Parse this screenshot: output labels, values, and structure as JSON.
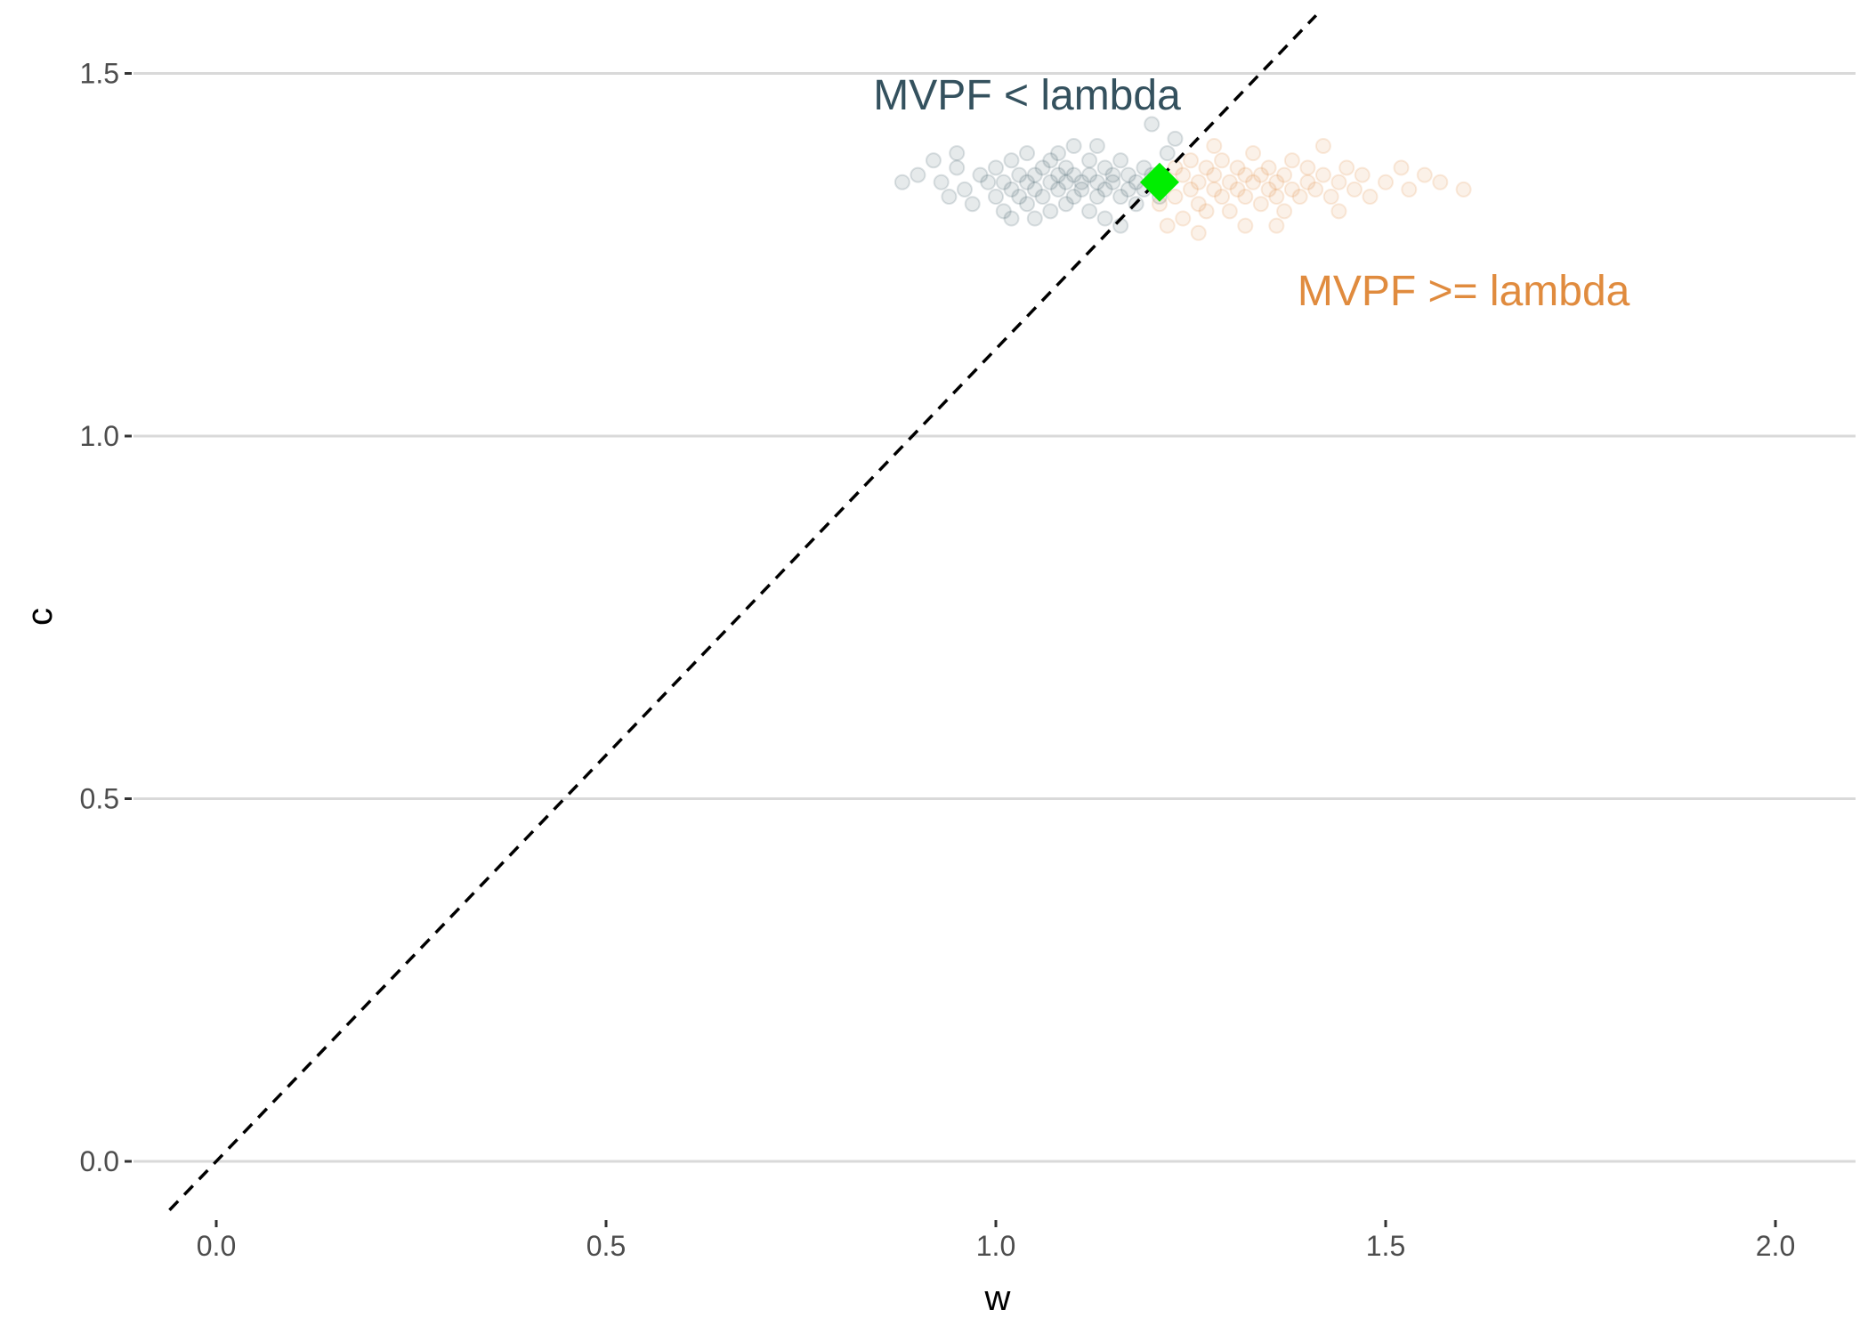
{
  "chart_data": {
    "type": "scatter",
    "title": "",
    "xlabel": "w",
    "ylabel": "c",
    "xlim": [
      -0.06,
      2.1
    ],
    "ylim": [
      -0.07,
      1.58
    ],
    "x_ticks": [
      0.0,
      0.5,
      1.0,
      1.5,
      2.0
    ],
    "x_tick_labels": [
      "0.0",
      "0.5",
      "1.0",
      "1.5",
      "2.0"
    ],
    "y_ticks": [
      0.0,
      0.5,
      1.0,
      1.5
    ],
    "y_tick_labels": [
      "0.0",
      "0.5",
      "1.0",
      "1.5"
    ],
    "grid": "horizontal",
    "series": [
      {
        "color": "#34515e",
        "opacity": 0.12,
        "points": [
          [
            0.88,
            1.35
          ],
          [
            0.9,
            1.36
          ],
          [
            0.92,
            1.38
          ],
          [
            0.93,
            1.35
          ],
          [
            0.94,
            1.33
          ],
          [
            0.95,
            1.37
          ],
          [
            0.96,
            1.34
          ],
          [
            0.97,
            1.32
          ],
          [
            0.98,
            1.36
          ],
          [
            0.99,
            1.35
          ],
          [
            1.0,
            1.33
          ],
          [
            1.0,
            1.37
          ],
          [
            1.01,
            1.31
          ],
          [
            1.01,
            1.35
          ],
          [
            1.02,
            1.34
          ],
          [
            1.02,
            1.38
          ],
          [
            1.03,
            1.33
          ],
          [
            1.03,
            1.36
          ],
          [
            1.04,
            1.32
          ],
          [
            1.04,
            1.35
          ],
          [
            1.04,
            1.39
          ],
          [
            1.05,
            1.34
          ],
          [
            1.05,
            1.36
          ],
          [
            1.06,
            1.33
          ],
          [
            1.06,
            1.37
          ],
          [
            1.07,
            1.31
          ],
          [
            1.07,
            1.35
          ],
          [
            1.07,
            1.38
          ],
          [
            1.08,
            1.34
          ],
          [
            1.08,
            1.36
          ],
          [
            1.09,
            1.32
          ],
          [
            1.09,
            1.35
          ],
          [
            1.09,
            1.37
          ],
          [
            1.1,
            1.33
          ],
          [
            1.1,
            1.36
          ],
          [
            1.1,
            1.4
          ],
          [
            1.11,
            1.34
          ],
          [
            1.11,
            1.35
          ],
          [
            1.12,
            1.31
          ],
          [
            1.12,
            1.36
          ],
          [
            1.12,
            1.38
          ],
          [
            1.13,
            1.33
          ],
          [
            1.13,
            1.35
          ],
          [
            1.14,
            1.34
          ],
          [
            1.14,
            1.37
          ],
          [
            1.14,
            1.3
          ],
          [
            1.15,
            1.35
          ],
          [
            1.15,
            1.36
          ],
          [
            1.16,
            1.33
          ],
          [
            1.16,
            1.38
          ],
          [
            1.17,
            1.34
          ],
          [
            1.17,
            1.36
          ],
          [
            1.18,
            1.32
          ],
          [
            1.18,
            1.35
          ],
          [
            1.19,
            1.37
          ],
          [
            1.19,
            1.34
          ],
          [
            1.2,
            1.36
          ],
          [
            1.2,
            1.43
          ],
          [
            1.21,
            1.33
          ],
          [
            1.22,
            1.39
          ],
          [
            1.23,
            1.41
          ],
          [
            1.13,
            1.4
          ],
          [
            1.05,
            1.3
          ],
          [
            0.95,
            1.39
          ],
          [
            1.16,
            1.29
          ],
          [
            1.08,
            1.39
          ],
          [
            1.02,
            1.3
          ]
        ]
      },
      {
        "color": "#e08b3e",
        "opacity": 0.12,
        "points": [
          [
            1.21,
            1.32
          ],
          [
            1.22,
            1.35
          ],
          [
            1.22,
            1.29
          ],
          [
            1.23,
            1.37
          ],
          [
            1.23,
            1.33
          ],
          [
            1.24,
            1.36
          ],
          [
            1.24,
            1.3
          ],
          [
            1.25,
            1.34
          ],
          [
            1.25,
            1.38
          ],
          [
            1.26,
            1.32
          ],
          [
            1.26,
            1.35
          ],
          [
            1.27,
            1.37
          ],
          [
            1.27,
            1.31
          ],
          [
            1.28,
            1.34
          ],
          [
            1.28,
            1.36
          ],
          [
            1.29,
            1.33
          ],
          [
            1.29,
            1.38
          ],
          [
            1.3,
            1.35
          ],
          [
            1.3,
            1.31
          ],
          [
            1.31,
            1.34
          ],
          [
            1.31,
            1.37
          ],
          [
            1.32,
            1.33
          ],
          [
            1.32,
            1.36
          ],
          [
            1.33,
            1.35
          ],
          [
            1.33,
            1.39
          ],
          [
            1.34,
            1.32
          ],
          [
            1.34,
            1.36
          ],
          [
            1.35,
            1.34
          ],
          [
            1.35,
            1.37
          ],
          [
            1.36,
            1.33
          ],
          [
            1.36,
            1.35
          ],
          [
            1.37,
            1.36
          ],
          [
            1.37,
            1.31
          ],
          [
            1.38,
            1.34
          ],
          [
            1.38,
            1.38
          ],
          [
            1.39,
            1.33
          ],
          [
            1.4,
            1.35
          ],
          [
            1.4,
            1.37
          ],
          [
            1.41,
            1.34
          ],
          [
            1.42,
            1.36
          ],
          [
            1.43,
            1.33
          ],
          [
            1.44,
            1.35
          ],
          [
            1.45,
            1.37
          ],
          [
            1.46,
            1.34
          ],
          [
            1.47,
            1.36
          ],
          [
            1.48,
            1.33
          ],
          [
            1.5,
            1.35
          ],
          [
            1.52,
            1.37
          ],
          [
            1.53,
            1.34
          ],
          [
            1.55,
            1.36
          ],
          [
            1.57,
            1.35
          ],
          [
            1.6,
            1.34
          ],
          [
            1.28,
            1.4
          ],
          [
            1.32,
            1.29
          ],
          [
            1.42,
            1.4
          ],
          [
            1.26,
            1.28
          ],
          [
            1.36,
            1.29
          ],
          [
            1.44,
            1.31
          ]
        ]
      }
    ],
    "reference_line": {
      "slope": 1.12,
      "intercept": 0.0,
      "style": "dashed",
      "color": "#000000"
    },
    "highlight_point": {
      "x": 1.21,
      "y": 1.35,
      "shape": "diamond",
      "color": "#00ee00"
    },
    "annotations": [
      {
        "text": "MVPF < lambda",
        "x": 1.04,
        "y": 1.47,
        "color": "#34515e"
      },
      {
        "text": "MVPF >= lambda",
        "x": 1.6,
        "y": 1.2,
        "color": "#e08b3e"
      }
    ]
  }
}
